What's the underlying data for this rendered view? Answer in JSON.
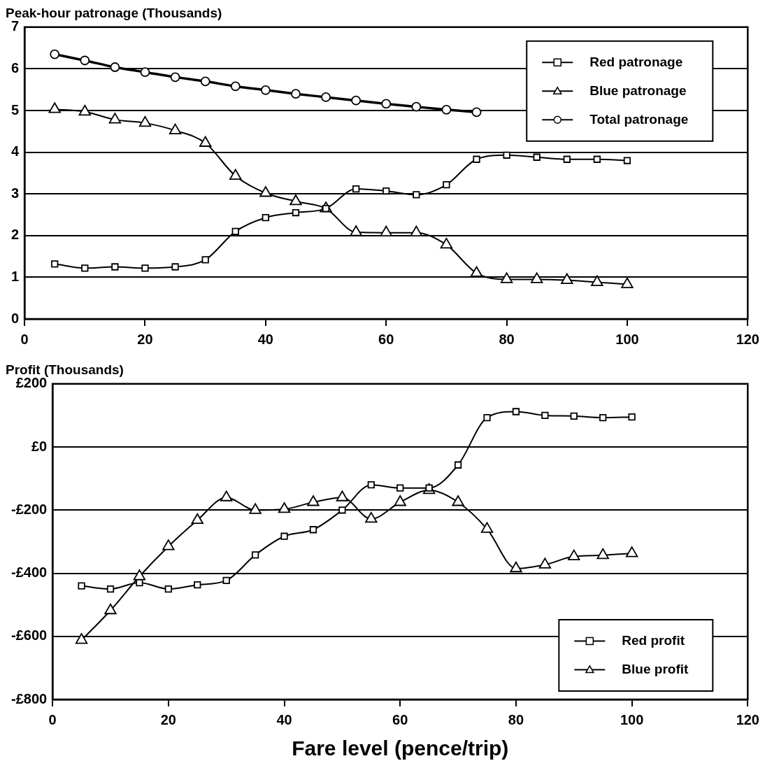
{
  "chart_data": [
    {
      "type": "line",
      "title": "Peak-hour patronage (Thousands)",
      "x": [
        5,
        10,
        15,
        20,
        25,
        30,
        35,
        40,
        45,
        50,
        55,
        60,
        65,
        70,
        75,
        80,
        85,
        90,
        95,
        100
      ],
      "series": [
        {
          "name": "Red patronage",
          "color": "#000000",
          "marker": "square",
          "values": [
            1.32,
            1.22,
            1.25,
            1.22,
            1.25,
            1.42,
            2.1,
            2.43,
            2.55,
            2.65,
            3.12,
            3.07,
            2.98,
            3.22,
            3.83,
            3.93,
            3.88,
            3.83,
            3.83,
            3.8
          ]
        },
        {
          "name": "Blue patronage",
          "color": "#000000",
          "marker": "triangle",
          "values": [
            5.03,
            4.97,
            4.78,
            4.7,
            4.52,
            4.22,
            3.43,
            3.02,
            2.82,
            2.65,
            2.08,
            2.07,
            2.07,
            1.78,
            1.1,
            0.95,
            0.95,
            0.93,
            0.88,
            0.83
          ]
        },
        {
          "name": "Total patronage",
          "color": "#000000",
          "marker": "circle",
          "values": [
            6.35,
            6.2,
            6.04,
            5.92,
            5.8,
            5.7,
            5.58,
            5.49,
            5.4,
            5.32,
            5.24,
            5.16,
            5.09,
            5.02,
            4.96,
            null,
            null,
            null,
            null,
            null
          ]
        }
      ],
      "xlim": [
        0,
        120
      ],
      "xticks": [
        0,
        20,
        40,
        60,
        80,
        100,
        120
      ],
      "ylim": [
        0,
        7
      ],
      "yticks": [
        0,
        1,
        2,
        3,
        4,
        5,
        6,
        7
      ],
      "grid": "y",
      "legend": "top right"
    },
    {
      "type": "line",
      "title": "Profit (Thousands)",
      "xlabel": "Fare level (pence/trip)",
      "x": [
        5,
        10,
        15,
        20,
        25,
        30,
        35,
        40,
        45,
        50,
        55,
        60,
        65,
        70,
        75,
        80,
        85,
        90,
        95,
        100
      ],
      "series": [
        {
          "name": "Red profit",
          "color": "#000000",
          "marker": "square",
          "values": [
            -440,
            -450,
            -430,
            -450,
            -437,
            -423,
            -342,
            -283,
            -262,
            -200,
            -120,
            -130,
            -130,
            -57,
            93,
            112,
            100,
            98,
            93,
            95
          ]
        },
        {
          "name": "Blue profit",
          "color": "#000000",
          "marker": "triangle",
          "values": [
            -612,
            -518,
            -410,
            -315,
            -232,
            -160,
            -200,
            -197,
            -175,
            -160,
            -228,
            -175,
            -137,
            -175,
            -260,
            -385,
            -373,
            -347,
            -343,
            -337
          ]
        }
      ],
      "xlim": [
        0,
        120
      ],
      "xticks": [
        0,
        20,
        40,
        60,
        80,
        100,
        120
      ],
      "ylim": [
        -800,
        200
      ],
      "yticks": [
        {
          "value": -800,
          "label": "-£800"
        },
        {
          "value": -600,
          "label": "-£600"
        },
        {
          "value": -400,
          "label": "-£400"
        },
        {
          "value": -200,
          "label": "-£200"
        },
        {
          "value": 0,
          "label": "£0"
        },
        {
          "value": 200,
          "label": "£200"
        }
      ],
      "grid": "y",
      "legend": "bottom right"
    }
  ]
}
